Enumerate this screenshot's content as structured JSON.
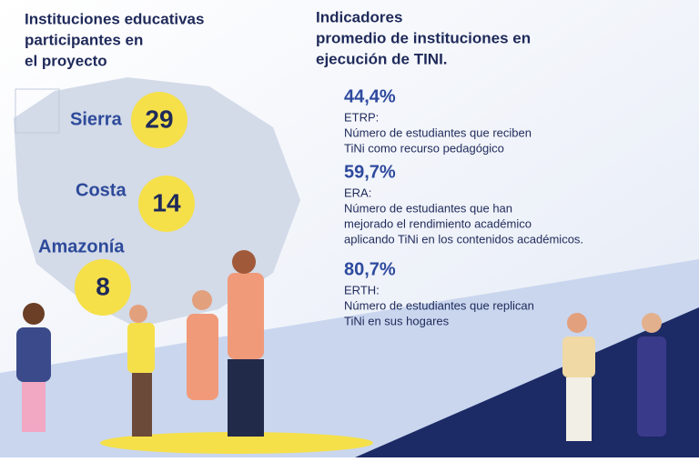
{
  "left": {
    "title": [
      "Instituciones educativas",
      "participantes en",
      "el proyecto"
    ],
    "regions": [
      {
        "name": "Sierra",
        "count": 29
      },
      {
        "name": "Costa",
        "count": 14
      },
      {
        "name": "Amazonía",
        "count": 8
      }
    ]
  },
  "right": {
    "title": [
      "Indicadores",
      "promedio de instituciones en",
      "ejecución de TINI."
    ],
    "indicators": [
      {
        "percent": "44,4%",
        "code": "ETRP:",
        "description": [
          "Número de estudiantes que reciben",
          "TiNi como recurso pedagógico"
        ]
      },
      {
        "percent": "59,7%",
        "code": "ERA:",
        "description": [
          "Número de estudiantes que han",
          "mejorado el rendimiento académico",
          "aplicando TiNi en los contenidos académicos."
        ]
      },
      {
        "percent": "80,7%",
        "code": "ERTH:",
        "description": [
          "Número de estudiantes que replican",
          "TiNi en sus hogares"
        ]
      }
    ]
  }
}
